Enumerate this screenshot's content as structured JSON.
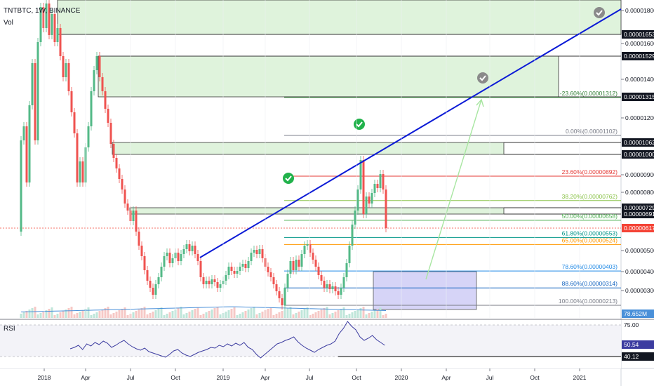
{
  "header": {
    "symbol": "TNTBTC, 1W, BINANCE",
    "volume_label": "Vol"
  },
  "rsi_panel": {
    "label": "RSI",
    "upper_level": "75.00",
    "current_value": "50.54",
    "signal_value": "40.12"
  },
  "volume_axis_label": "78.652M",
  "colors": {
    "up": "#26a69a",
    "up_fill": "#53b987",
    "down": "#ef5350",
    "trendline": "#0b1ad6",
    "zone_fill": "#dff3dc",
    "zone_stroke": "#333333",
    "target_box": "#d6d4f7",
    "current_price": "#f44336",
    "rsi_line": "#3c3ca0",
    "volume_ma": "#4a90d9",
    "check_green": "#21b24b",
    "check_gray": "#8a8a8a"
  },
  "chart_data": {
    "type": "candlestick",
    "timeframe": "1W",
    "title": "",
    "ylim": [
      1.8e-06,
      1.85e-05
    ],
    "x_axis_ticks": [
      "2018",
      "Apr",
      "Jul",
      "Oct",
      "2019",
      "Apr",
      "Jul",
      "Oct",
      "2020",
      "Apr",
      "Jul",
      "Oct",
      "2021"
    ],
    "price_axis_ticks": [
      "0.00001800",
      "0.00001600",
      "0.00001400",
      "0.00001200",
      "0.00000900",
      "0.00000800",
      "0.00000500",
      "0.00000400",
      "0.00000300"
    ],
    "price_axis_badges": [
      {
        "label": "0.00001653",
        "value": 1.653e-05,
        "style": "dark"
      },
      {
        "label": "0.00001529",
        "value": 1.529e-05,
        "style": "dark"
      },
      {
        "label": "0.00001315",
        "value": 1.315e-05,
        "style": "dark"
      },
      {
        "label": "0.00001062",
        "value": 1.062e-05,
        "style": "dark"
      },
      {
        "label": "0.00001000",
        "value": 1e-05,
        "style": "dark"
      },
      {
        "label": "0.00000729",
        "value": 7.29e-06,
        "style": "dark"
      },
      {
        "label": "0.00000691",
        "value": 6.91e-06,
        "style": "dark"
      },
      {
        "label": "0.00000617",
        "value": 6.17e-06,
        "style": "red"
      }
    ],
    "fib_levels": [
      {
        "label": "-23.60%(0.00001312)",
        "value": 1.312e-05,
        "color": "#2e7d32"
      },
      {
        "label": "0.00%(0.00001102)",
        "value": 1.102e-05,
        "color": "#787b86"
      },
      {
        "label": "23.60%(0.00000892)",
        "value": 8.92e-06,
        "color": "#e53935"
      },
      {
        "label": "38.20%(0.00000762)",
        "value": 7.62e-06,
        "color": "#8bc34a"
      },
      {
        "label": "50.00%(0.00000658)",
        "value": 6.58e-06,
        "color": "#4caf50"
      },
      {
        "label": "61.80%(0.00000553)",
        "value": 5.53e-06,
        "color": "#009688"
      },
      {
        "label": "65.00%(0.00000524)",
        "value": 5.24e-06,
        "color": "#ff9800"
      },
      {
        "label": "78.60%(0.00000403)",
        "value": 4.03e-06,
        "color": "#1e88e5"
      },
      {
        "label": "88.60%(0.00000314)",
        "value": 3.14e-06,
        "color": "#1565c0"
      },
      {
        "label": "100.00%(0.00000213)",
        "value": 2.13e-06,
        "color": "#787b86"
      }
    ],
    "current_price": 6.17e-06
  }
}
